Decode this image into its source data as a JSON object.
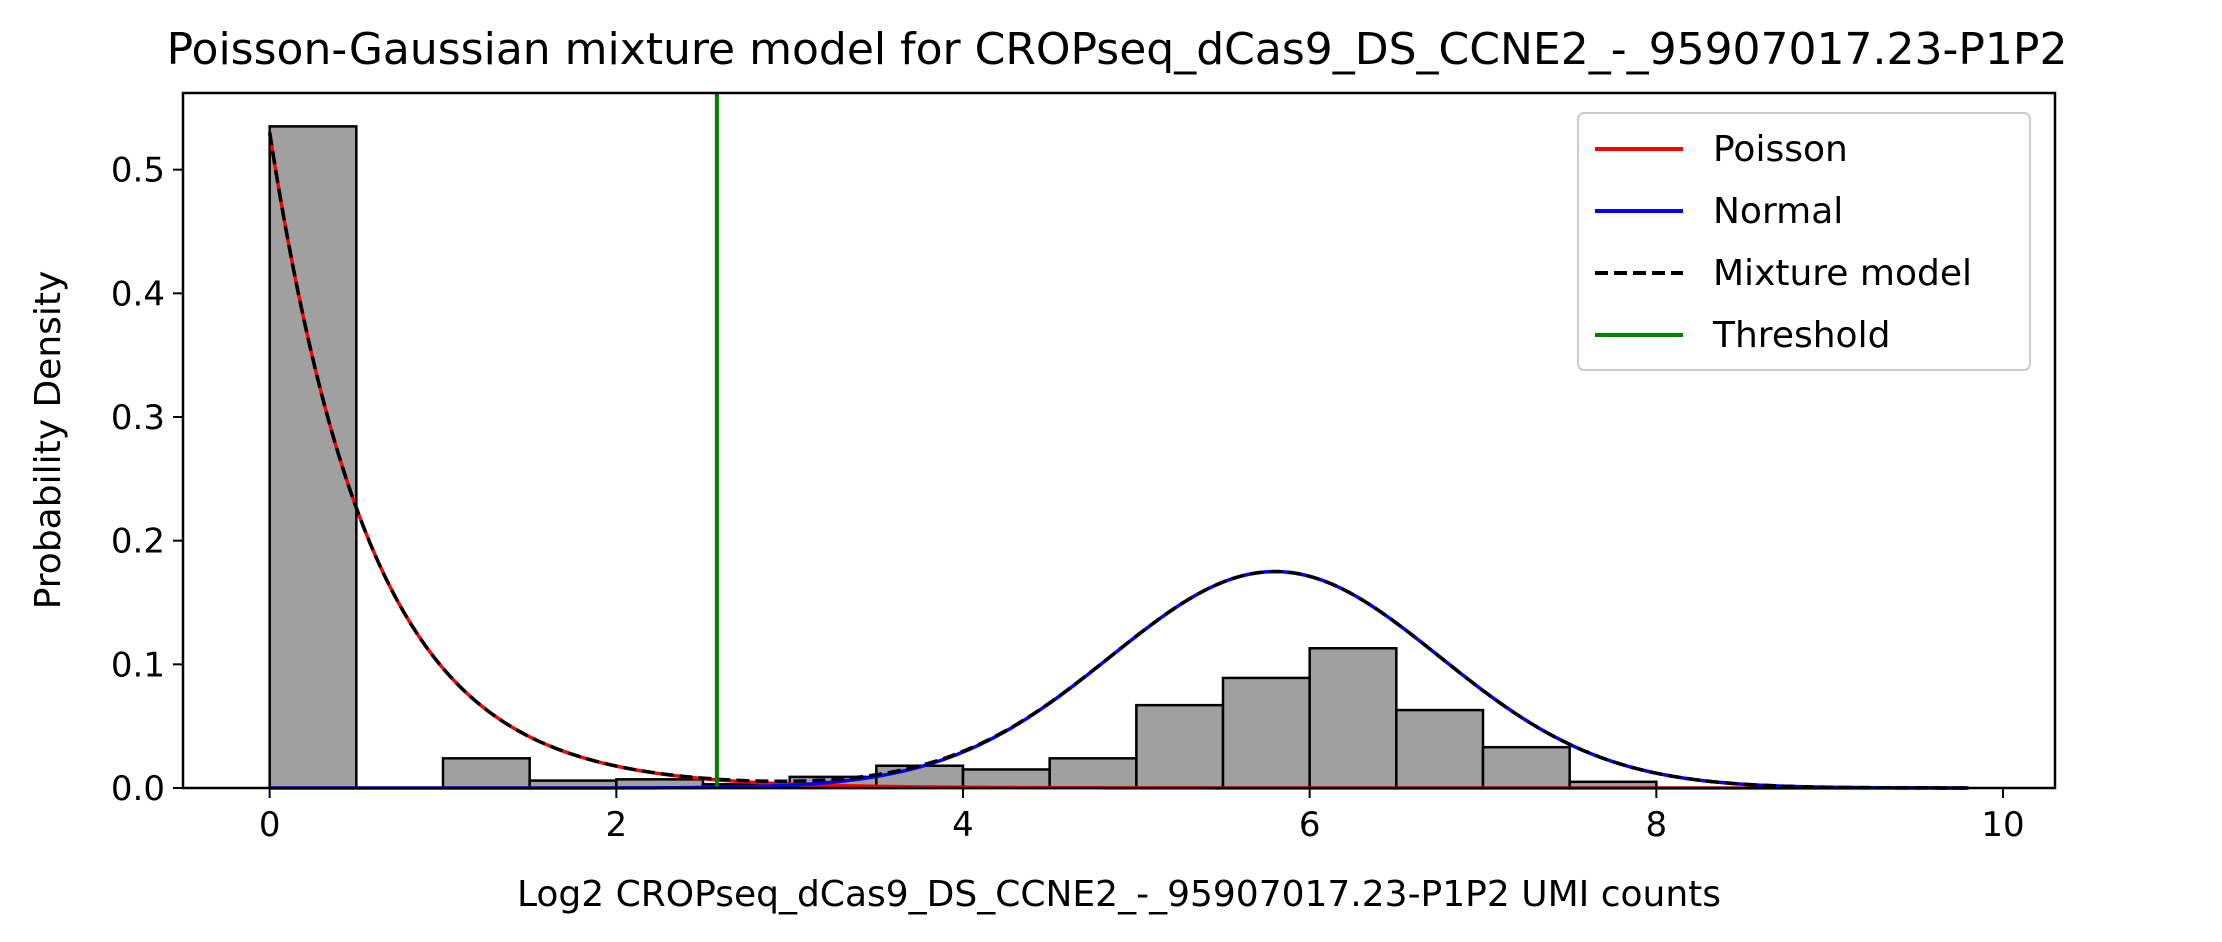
{
  "chart_data": {
    "type": "histogram-with-density",
    "title": "Poisson-Gaussian mixture model for CROPseq_dCas9_DS_CCNE2_-_95907017.23-P1P2",
    "xlabel": "Log2 CROPseq_dCas9_DS_CCNE2_-_95907017.23-P1P2 UMI counts",
    "ylabel": "Probability Density",
    "xlim": [
      -0.5,
      10.3
    ],
    "ylim": [
      0,
      0.562
    ],
    "x_ticks": [
      0,
      2,
      4,
      6,
      8,
      10
    ],
    "x_tick_labels": [
      "0",
      "2",
      "4",
      "6",
      "8",
      "10"
    ],
    "y_ticks": [
      0.0,
      0.1,
      0.2,
      0.3,
      0.4,
      0.5
    ],
    "y_tick_labels": [
      "0.0",
      "0.1",
      "0.2",
      "0.3",
      "0.4",
      "0.5"
    ],
    "histogram": {
      "bin_edges": [
        0,
        0.5,
        1.0,
        1.5,
        2.0,
        2.5,
        3.0,
        3.5,
        4.0,
        4.5,
        5.0,
        5.5,
        6.0,
        6.5,
        7.0,
        7.5,
        8.0
      ],
      "values": [
        0.535,
        0.0,
        0.024,
        0.006,
        0.007,
        0.003,
        0.009,
        0.018,
        0.015,
        0.024,
        0.067,
        0.089,
        0.113,
        0.063,
        0.033,
        0.005
      ]
    },
    "threshold": 2.58,
    "poisson": {
      "weight": 0.53,
      "rate": 1.7
    },
    "normal": {
      "mean": 5.8,
      "sd": 0.95,
      "peak": 0.175
    },
    "curve_x_max": 9.8,
    "legend": {
      "location": "top-right",
      "entries": [
        {
          "label": "Poisson",
          "color": "#ff0000",
          "style": "solid"
        },
        {
          "label": "Normal",
          "color": "#0000ff",
          "style": "solid"
        },
        {
          "label": "Mixture model",
          "color": "#000000",
          "style": "dashed"
        },
        {
          "label": "Threshold",
          "color": "#008000",
          "style": "solid"
        }
      ]
    },
    "bar_color": "#a0a0a0"
  }
}
